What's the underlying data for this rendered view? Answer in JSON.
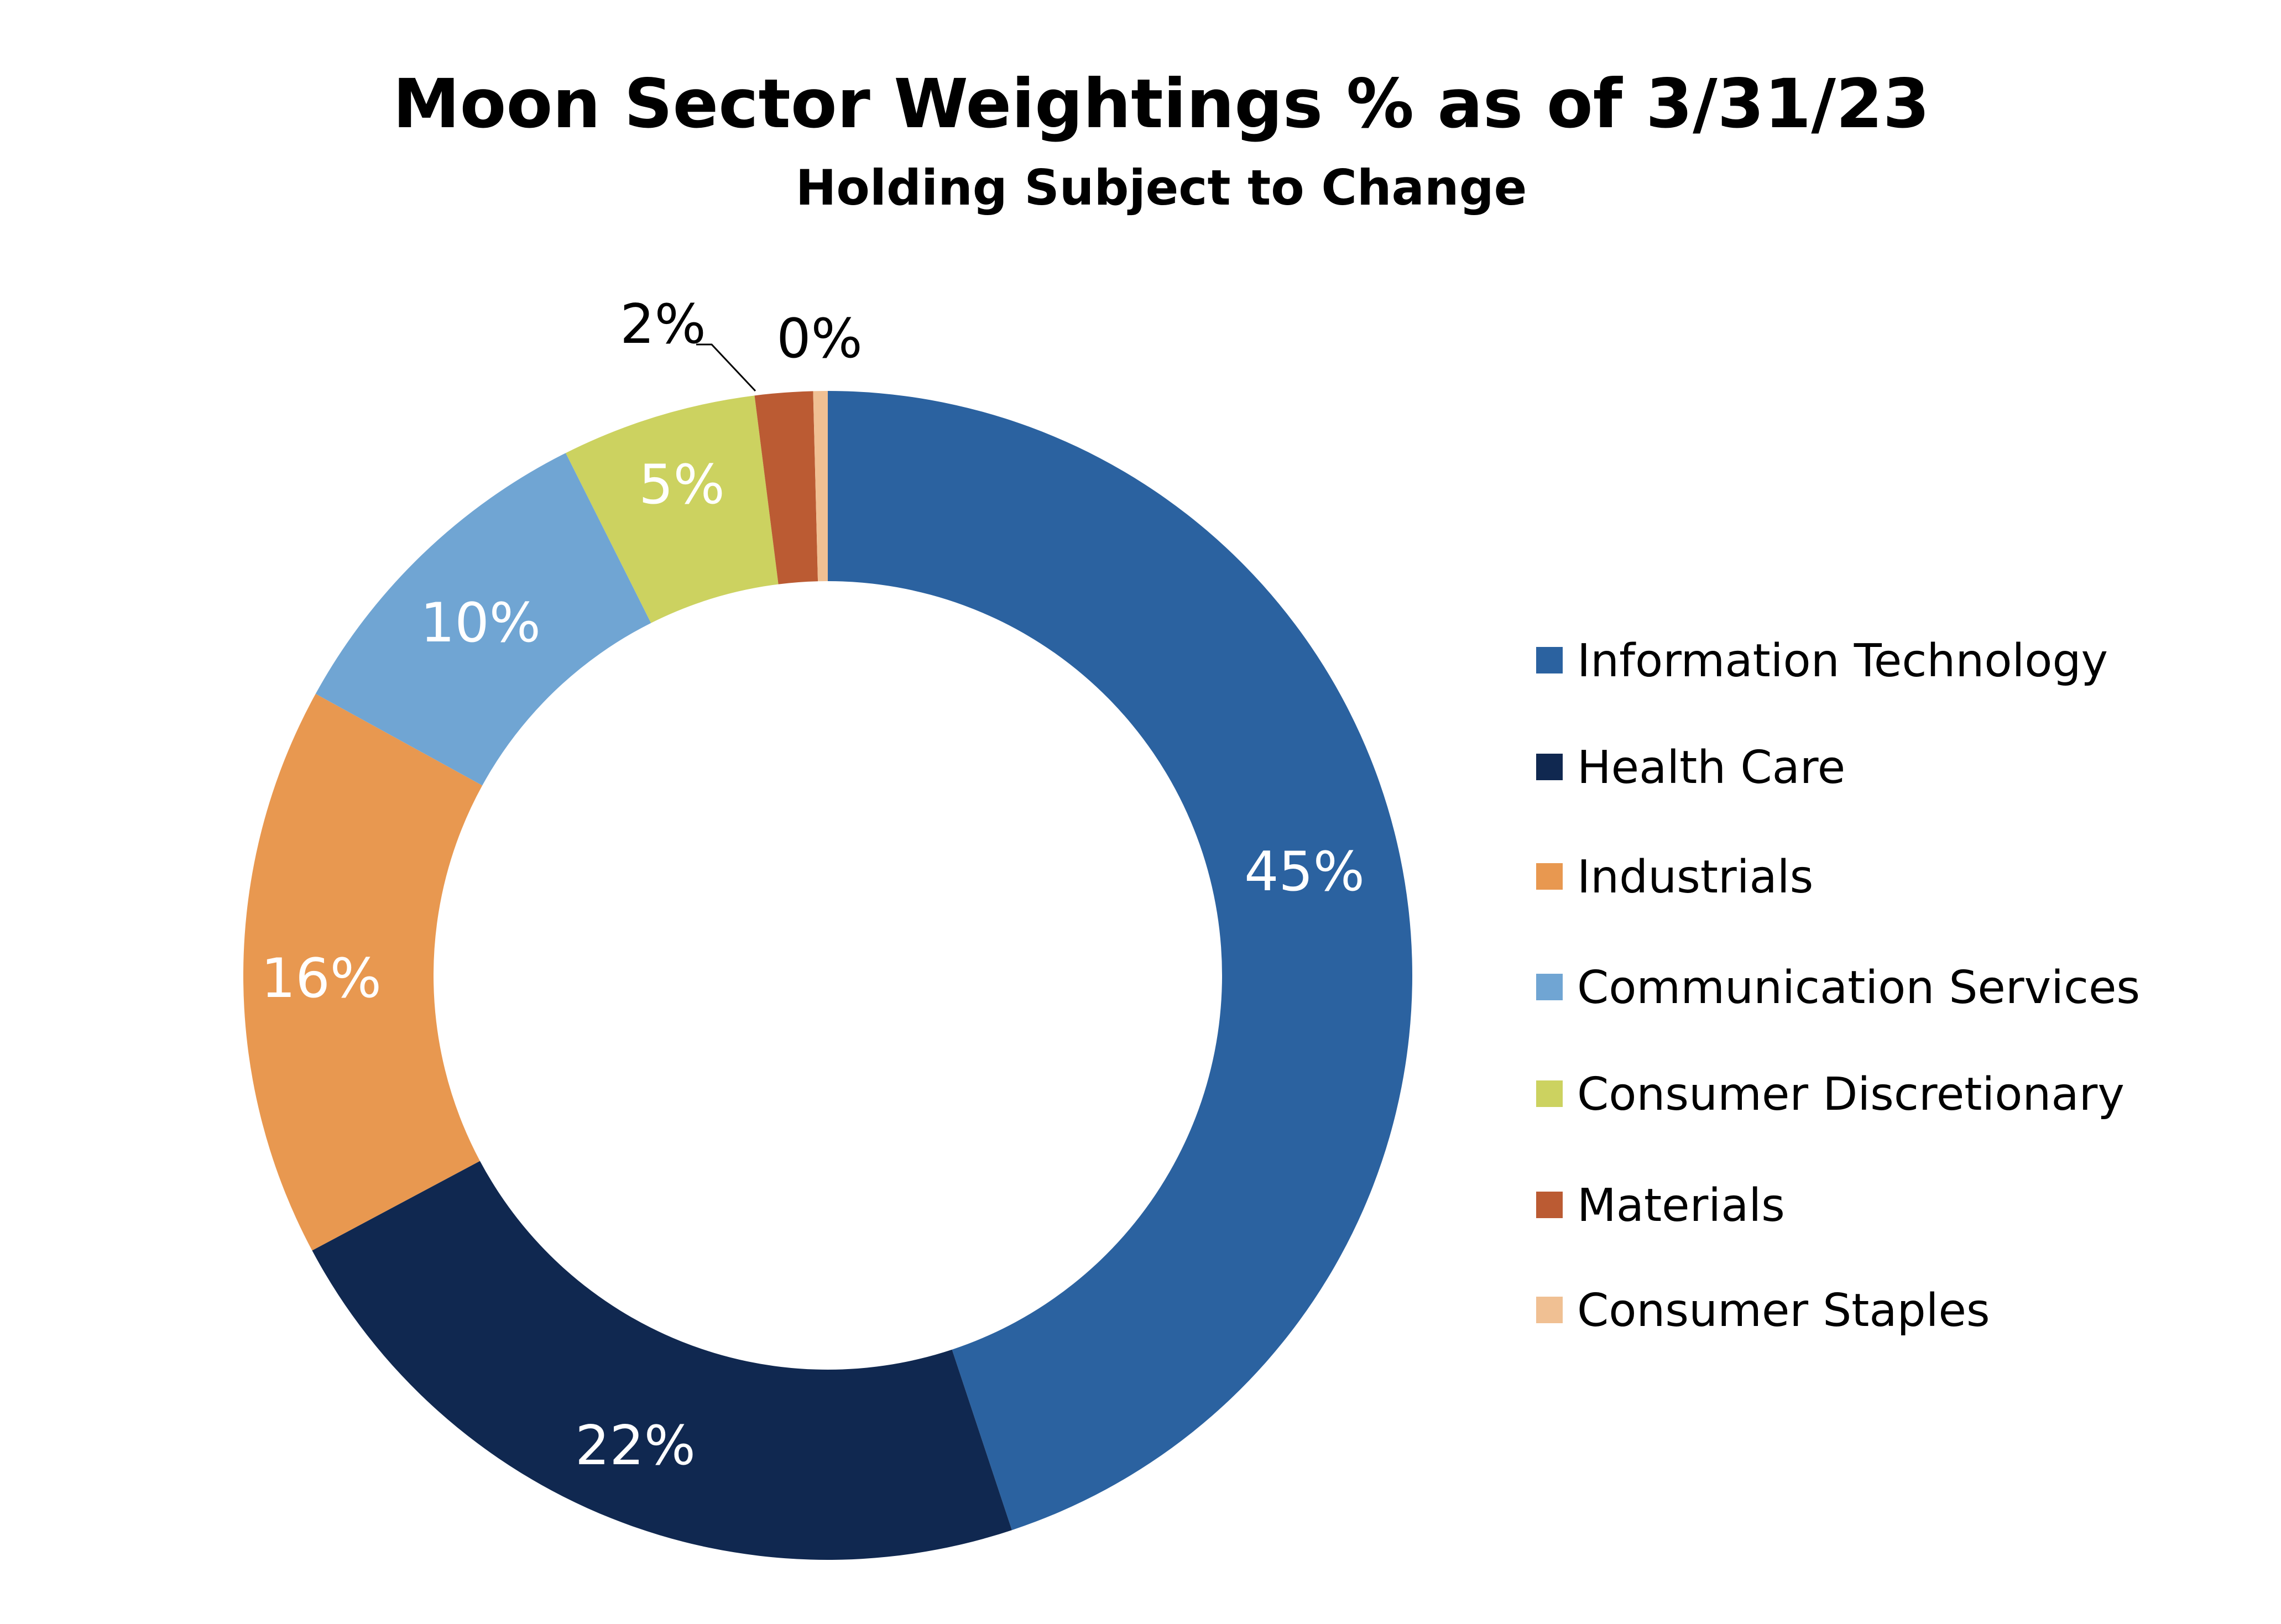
{
  "chart_data": {
    "type": "pie",
    "variant": "donut",
    "title": "Moon Sector Weightings % as of 3/31/23",
    "subtitle": "Holding Subject to Change",
    "legend_position": "right",
    "categories": [
      "Information Technology",
      "Health Care",
      "Industrials",
      "Communication Services",
      "Consumer Discretionary",
      "Materials",
      "Consumer Staples"
    ],
    "values": [
      44.9,
      22.3,
      15.8,
      9.6,
      5.4,
      1.6,
      0.4
    ],
    "data_labels": [
      "45%",
      "22%",
      "16%",
      "10%",
      "5%",
      "2%",
      "0%"
    ],
    "colors": [
      "#2b62a0",
      "#102850",
      "#e89850",
      "#70a5d3",
      "#ccd260",
      "#bb5b33",
      "#f0c093"
    ],
    "label_colors": [
      "#ffffff",
      "#ffffff",
      "#ffffff",
      "#ffffff",
      "#ffffff",
      "#000000",
      "#000000"
    ]
  }
}
